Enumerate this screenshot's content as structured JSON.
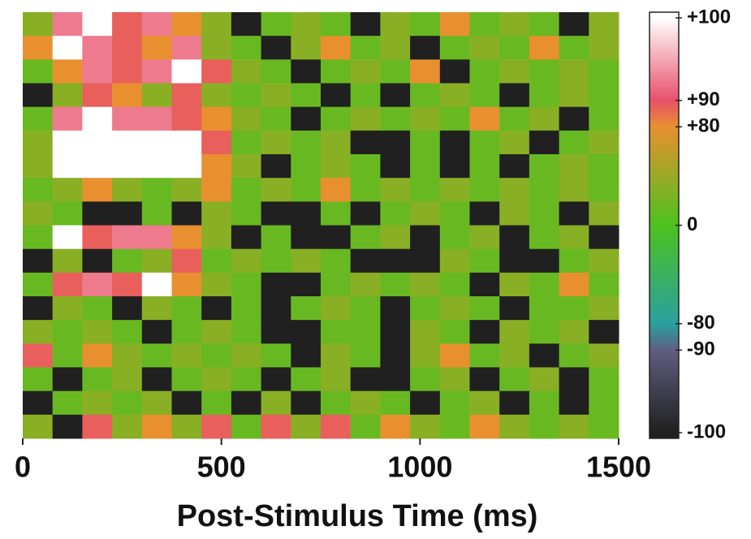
{
  "chart_data": {
    "type": "heatmap",
    "x_label": "Post-Stimulus Time (ms)",
    "xlim": [
      0,
      1500
    ],
    "xticks": [
      0,
      500,
      1000,
      1500
    ],
    "z": [
      [
        40,
        95,
        100,
        88,
        95,
        80,
        40,
        -100,
        20,
        40,
        20,
        -100,
        40,
        20,
        80,
        20,
        40,
        20,
        -100,
        40
      ],
      [
        80,
        100,
        95,
        88,
        80,
        95,
        40,
        20,
        -100,
        40,
        80,
        20,
        40,
        -100,
        20,
        40,
        20,
        80,
        20,
        40
      ],
      [
        20,
        80,
        95,
        88,
        95,
        100,
        88,
        40,
        20,
        -100,
        20,
        40,
        20,
        80,
        -100,
        20,
        40,
        20,
        40,
        20
      ],
      [
        -100,
        40,
        88,
        80,
        40,
        88,
        40,
        20,
        40,
        20,
        -100,
        20,
        -100,
        20,
        40,
        20,
        -100,
        20,
        40,
        20
      ],
      [
        20,
        95,
        100,
        95,
        95,
        88,
        80,
        40,
        20,
        -100,
        20,
        40,
        20,
        40,
        20,
        80,
        20,
        40,
        -100,
        20
      ],
      [
        40,
        100,
        100,
        100,
        100,
        100,
        88,
        20,
        40,
        20,
        40,
        -100,
        -100,
        20,
        -100,
        20,
        40,
        -100,
        20,
        40
      ],
      [
        40,
        100,
        100,
        100,
        100,
        100,
        80,
        40,
        -100,
        20,
        40,
        20,
        -100,
        20,
        -100,
        20,
        -100,
        20,
        40,
        20
      ],
      [
        20,
        40,
        80,
        40,
        20,
        40,
        80,
        20,
        40,
        20,
        80,
        20,
        40,
        20,
        40,
        20,
        40,
        20,
        40,
        20
      ],
      [
        40,
        20,
        -100,
        -100,
        20,
        -100,
        40,
        20,
        -100,
        -100,
        20,
        -100,
        20,
        40,
        20,
        -100,
        40,
        20,
        -100,
        40
      ],
      [
        20,
        100,
        88,
        95,
        95,
        80,
        40,
        -100,
        20,
        -100,
        -100,
        20,
        40,
        -100,
        20,
        40,
        -100,
        20,
        40,
        -100
      ],
      [
        -100,
        40,
        -100,
        20,
        40,
        88,
        20,
        40,
        20,
        40,
        20,
        -100,
        -100,
        -100,
        40,
        20,
        -100,
        -100,
        20,
        40
      ],
      [
        20,
        88,
        95,
        88,
        100,
        80,
        40,
        20,
        -100,
        -100,
        20,
        40,
        20,
        40,
        20,
        -100,
        40,
        20,
        80,
        20
      ],
      [
        -100,
        40,
        20,
        -100,
        40,
        20,
        -100,
        20,
        -100,
        20,
        40,
        20,
        -100,
        20,
        40,
        20,
        -100,
        20,
        20,
        40
      ],
      [
        40,
        20,
        40,
        20,
        -100,
        20,
        40,
        20,
        -100,
        -100,
        20,
        20,
        -100,
        40,
        20,
        -100,
        40,
        20,
        40,
        -100
      ],
      [
        88,
        20,
        80,
        40,
        20,
        40,
        20,
        40,
        20,
        -100,
        40,
        20,
        -100,
        40,
        80,
        20,
        40,
        -100,
        20,
        40
      ],
      [
        20,
        -100,
        20,
        40,
        -100,
        20,
        40,
        20,
        -100,
        20,
        40,
        -100,
        -100,
        20,
        40,
        -100,
        20,
        40,
        -100,
        20
      ],
      [
        -100,
        20,
        40,
        20,
        40,
        -100,
        20,
        -100,
        40,
        -100,
        20,
        40,
        20,
        -100,
        20,
        40,
        -100,
        20,
        -100,
        20
      ],
      [
        40,
        -100,
        88,
        40,
        80,
        40,
        88,
        20,
        88,
        40,
        88,
        20,
        80,
        40,
        20,
        80,
        40,
        20,
        40,
        20
      ]
    ],
    "colorbar": {
      "ticks": [
        {
          "value": 100,
          "label": "+100"
        },
        {
          "value": 90,
          "label": "+90"
        },
        {
          "value": 80,
          "label": "+80"
        },
        0,
        -80,
        -90,
        -100
      ],
      "colors": [
        "#ffffff",
        "#e8506a",
        "#e89030",
        "#4cc21e",
        "#2aa0a0",
        "#5e5e80",
        "#202020"
      ]
    }
  }
}
